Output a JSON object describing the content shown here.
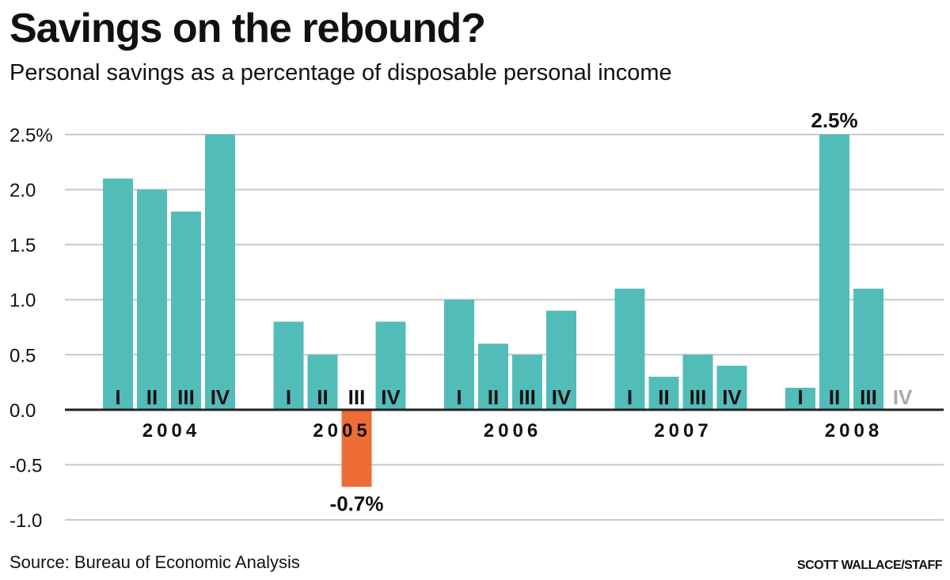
{
  "chart_data": {
    "type": "bar",
    "title": "Savings on the rebound?",
    "subtitle": "Personal savings as a percentage of disposable personal income",
    "source": "Source: Bureau of Economic Analysis",
    "credit": "SCOTT WALLACE/STAFF",
    "ylim": [
      -1.0,
      2.5
    ],
    "yticks": [
      {
        "value": 2.5,
        "label": "2.5%"
      },
      {
        "value": 2.0,
        "label": "2.0"
      },
      {
        "value": 1.5,
        "label": "1.5"
      },
      {
        "value": 1.0,
        "label": "1.0"
      },
      {
        "value": 0.5,
        "label": "0.5"
      },
      {
        "value": 0.0,
        "label": "0.0"
      },
      {
        "value": -0.5,
        "label": "-0.5"
      },
      {
        "value": -1.0,
        "label": "-1.0"
      }
    ],
    "grid": true,
    "colors": {
      "positive": "#52bcb8",
      "negative": "#ee6c36",
      "grid": "#c8c8c8",
      "axis": "#222222",
      "missing_label": "#a9a9a9"
    },
    "groups": [
      {
        "year": "2004",
        "quarters": [
          {
            "label": "I",
            "value": 2.1
          },
          {
            "label": "II",
            "value": 2.0
          },
          {
            "label": "III",
            "value": 1.8
          },
          {
            "label": "IV",
            "value": 2.5
          }
        ]
      },
      {
        "year": "2005",
        "quarters": [
          {
            "label": "I",
            "value": 0.8
          },
          {
            "label": "II",
            "value": 0.5
          },
          {
            "label": "III",
            "value": -0.7,
            "callout": "-0.7%"
          },
          {
            "label": "IV",
            "value": 0.8
          }
        ]
      },
      {
        "year": "2006",
        "quarters": [
          {
            "label": "I",
            "value": 1.0
          },
          {
            "label": "II",
            "value": 0.6
          },
          {
            "label": "III",
            "value": 0.5
          },
          {
            "label": "IV",
            "value": 0.9
          }
        ]
      },
      {
        "year": "2007",
        "quarters": [
          {
            "label": "I",
            "value": 1.1
          },
          {
            "label": "II",
            "value": 0.3
          },
          {
            "label": "III",
            "value": 0.5
          },
          {
            "label": "IV",
            "value": 0.4
          }
        ]
      },
      {
        "year": "2008",
        "quarters": [
          {
            "label": "I",
            "value": 0.2
          },
          {
            "label": "II",
            "value": 2.5,
            "callout": "2.5%"
          },
          {
            "label": "III",
            "value": 1.1
          },
          {
            "label": "IV",
            "value": null
          }
        ]
      }
    ]
  }
}
